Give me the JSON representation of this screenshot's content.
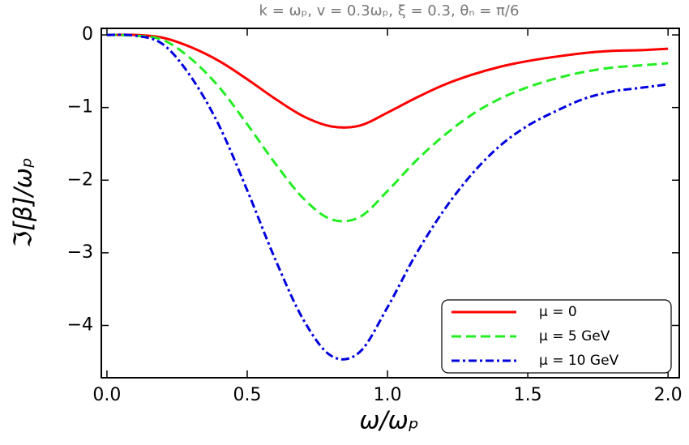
{
  "chart_data": {
    "type": "line",
    "title": "k = ωₚ, v = 0.3ωₚ, ξ = 0.3, θₙ = π/6",
    "x_label": "ω/ωₚ",
    "y_label": "ℑ[β]/ωₚ",
    "x": [
      0,
      0.1,
      0.2,
      0.3,
      0.4,
      0.5,
      0.6,
      0.7,
      0.8,
      0.9,
      1.0,
      1.1,
      1.2,
      1.3,
      1.4,
      1.5,
      1.6,
      1.7,
      1.8,
      1.9,
      2.0
    ],
    "series": [
      {
        "name": "μ = 0",
        "color": "#ff0000",
        "dash": "solid",
        "values": [
          0,
          0,
          -0.04,
          -0.17,
          -0.36,
          -0.61,
          -0.88,
          -1.12,
          -1.26,
          -1.25,
          -1.07,
          -0.87,
          -0.69,
          -0.55,
          -0.44,
          -0.36,
          -0.3,
          -0.25,
          -0.22,
          -0.21,
          -0.19
        ]
      },
      {
        "name": "μ = 5 GeV",
        "color": "#22ee22",
        "dash": "dashed",
        "values": [
          0,
          -0.01,
          -0.07,
          -0.33,
          -0.72,
          -1.23,
          -1.77,
          -2.25,
          -2.54,
          -2.51,
          -2.15,
          -1.74,
          -1.39,
          -1.1,
          -0.88,
          -0.72,
          -0.6,
          -0.51,
          -0.45,
          -0.42,
          -0.39
        ]
      },
      {
        "name": "μ = 10 GeV",
        "color": "#0000dd",
        "dash": "dashdot",
        "values": [
          0,
          -0.01,
          -0.13,
          -0.58,
          -1.25,
          -2.14,
          -3.09,
          -3.92,
          -4.42,
          -4.37,
          -3.75,
          -3.03,
          -2.42,
          -1.92,
          -1.53,
          -1.25,
          -1.05,
          -0.88,
          -0.78,
          -0.73,
          -0.68
        ]
      }
    ],
    "xlim": [
      -0.02,
      2.04
    ],
    "ylim": [
      -4.72,
      0.09
    ],
    "xticks": [
      {
        "value": 0,
        "label": "0.0"
      },
      0.5,
      {
        "value": 1,
        "label": "1.0"
      },
      1.5,
      {
        "value": 2,
        "label": "2.0"
      }
    ],
    "yticks": [
      0,
      {
        "value": -1,
        "label": "−1"
      },
      {
        "value": -2,
        "label": "−2"
      },
      {
        "value": -3,
        "label": "−3"
      },
      {
        "value": -4,
        "label": "−4"
      }
    ],
    "legend": "lower right",
    "grid": false
  }
}
